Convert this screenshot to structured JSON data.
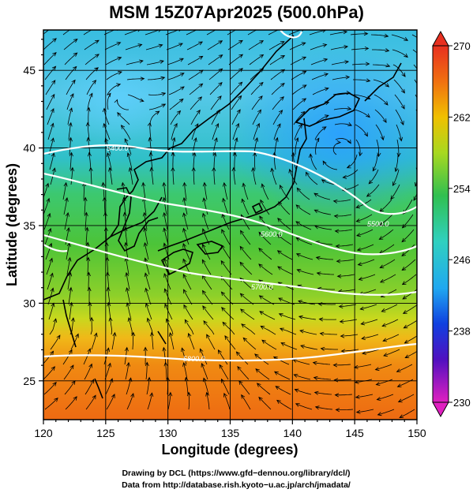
{
  "title": "MSM 15Z07Apr2025 (500.0hPa)",
  "axes": {
    "xlabel": "Longitude (degrees)",
    "ylabel": "Latitude  (degrees)",
    "xlim": [
      120,
      150
    ],
    "ylim": [
      22.5,
      47.6
    ],
    "xticks": [
      "120",
      "125",
      "130",
      "135",
      "140",
      "145",
      "150"
    ],
    "yticks": [
      "25",
      "30",
      "35",
      "40",
      "45"
    ],
    "grid": true
  },
  "colorbar": {
    "min": 230,
    "max": 270,
    "ticks": [
      "270",
      "262",
      "254",
      "246",
      "238",
      "230"
    ]
  },
  "contours": {
    "labels": [
      "5400.0",
      "5500.0",
      "5600.0",
      "5700.0",
      "5800.0"
    ]
  },
  "credits": {
    "line1": "Drawing by DCL (https://www.gfd−dennou.org/library/dcl/)",
    "line2": "Data from http://database.rish.kyoto−u.ac.jp/arch/jmadata/"
  },
  "colors": {
    "field_cold": "#33b5f0",
    "field_mid": "#3cc846",
    "field_warm": "#f07a10",
    "contour": "#ffffff",
    "streamline": "#000000"
  }
}
